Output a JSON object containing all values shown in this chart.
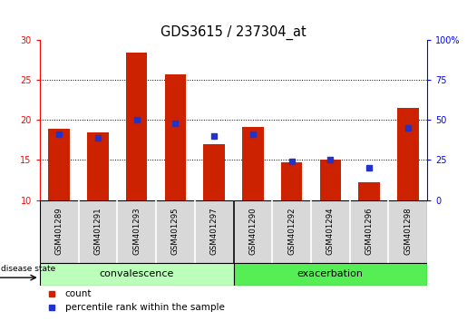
{
  "title": "GDS3615 / 237304_at",
  "samples": [
    "GSM401289",
    "GSM401291",
    "GSM401293",
    "GSM401295",
    "GSM401297",
    "GSM401290",
    "GSM401292",
    "GSM401294",
    "GSM401296",
    "GSM401298"
  ],
  "count_values": [
    18.9,
    18.4,
    28.4,
    25.7,
    16.9,
    19.1,
    14.7,
    15.0,
    12.2,
    21.5
  ],
  "percentile_values": [
    41,
    39,
    50,
    48,
    40,
    41,
    24,
    25,
    20,
    45
  ],
  "count_base": 10,
  "left_ylim": [
    10,
    30
  ],
  "left_yticks": [
    10,
    15,
    20,
    25,
    30
  ],
  "right_ylim": [
    0,
    100
  ],
  "right_yticks": [
    0,
    25,
    50,
    75,
    100
  ],
  "right_yticklabels": [
    "0",
    "25",
    "50",
    "75",
    "100%"
  ],
  "bar_color": "#cc2200",
  "percentile_color": "#2233cc",
  "label_bg_color": "#d8d8d8",
  "convalescence_color": "#bbffbb",
  "exacerbation_color": "#55ee55",
  "group_labels": [
    "convalescence",
    "exacerbation"
  ],
  "legend_items": [
    "count",
    "percentile rank within the sample"
  ],
  "bar_width": 0.55,
  "percentile_marker_size": 5,
  "tick_label_fontsize": 7,
  "title_fontsize": 10.5
}
